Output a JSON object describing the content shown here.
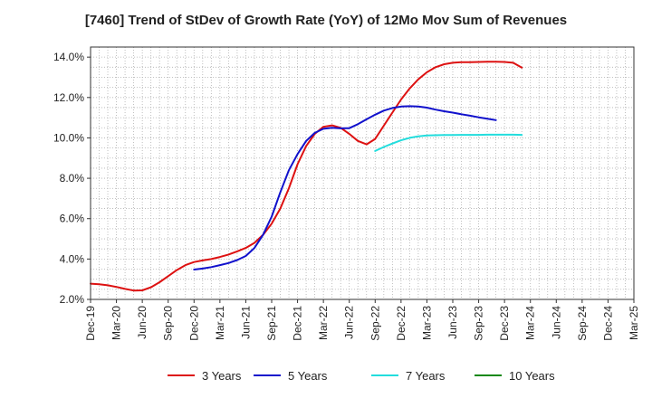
{
  "chart_data": {
    "type": "line",
    "title": "[7460]  Trend of StDev of Growth Rate (YoY) of 12Mo Mov Sum of Revenues",
    "xlabel": "",
    "ylabel": "",
    "x_ticks": [
      "Dec-19",
      "Mar-20",
      "Jun-20",
      "Sep-20",
      "Dec-20",
      "Mar-21",
      "Jun-21",
      "Sep-21",
      "Dec-21",
      "Mar-22",
      "Jun-22",
      "Sep-22",
      "Dec-22",
      "Mar-23",
      "Jun-23",
      "Sep-23",
      "Dec-23",
      "Mar-24",
      "Jun-24",
      "Sep-24",
      "Dec-24",
      "Mar-25"
    ],
    "y_ticks": [
      2.0,
      4.0,
      6.0,
      8.0,
      10.0,
      12.0,
      14.0
    ],
    "y_tick_labels": [
      "2.0%",
      "4.0%",
      "6.0%",
      "8.0%",
      "10.0%",
      "12.0%",
      "14.0%"
    ],
    "ylim": [
      2.0,
      14.5
    ],
    "grid": true,
    "legend_position": "bottom",
    "series": [
      {
        "name": "3 Years",
        "color": "#dd1111",
        "start_index": 0,
        "values": [
          2.78,
          2.75,
          2.7,
          2.62,
          2.52,
          2.44,
          2.45,
          2.6,
          2.85,
          3.15,
          3.45,
          3.7,
          3.85,
          3.93,
          4.0,
          4.1,
          4.22,
          4.38,
          4.55,
          4.8,
          5.2,
          5.75,
          6.5,
          7.5,
          8.7,
          9.6,
          10.2,
          10.55,
          10.62,
          10.5,
          10.2,
          9.85,
          9.68,
          9.95,
          10.6,
          11.25,
          11.9,
          12.45,
          12.9,
          13.25,
          13.5,
          13.65,
          13.72,
          13.75,
          13.75,
          13.76,
          13.77,
          13.77,
          13.76,
          13.72,
          13.48
        ]
      },
      {
        "name": "5 Years",
        "color": "#1111cc",
        "start_index": 12,
        "values": [
          3.48,
          3.53,
          3.6,
          3.7,
          3.8,
          3.95,
          4.15,
          4.55,
          5.2,
          6.1,
          7.3,
          8.4,
          9.2,
          9.85,
          10.25,
          10.45,
          10.5,
          10.47,
          10.48,
          10.68,
          10.92,
          11.15,
          11.35,
          11.48,
          11.55,
          11.57,
          11.55,
          11.5,
          11.4,
          11.32,
          11.25,
          11.17,
          11.1,
          11.02,
          10.95,
          10.88
        ]
      },
      {
        "name": "7 Years",
        "color": "#22dddd",
        "start_index": 33,
        "values": [
          9.35,
          9.55,
          9.72,
          9.88,
          10.0,
          10.08,
          10.12,
          10.13,
          10.14,
          10.14,
          10.15,
          10.15,
          10.15,
          10.16,
          10.16,
          10.16,
          10.16,
          10.15
        ]
      },
      {
        "name": "10 Years",
        "color": "#118811",
        "start_index": 0,
        "values": []
      }
    ]
  }
}
